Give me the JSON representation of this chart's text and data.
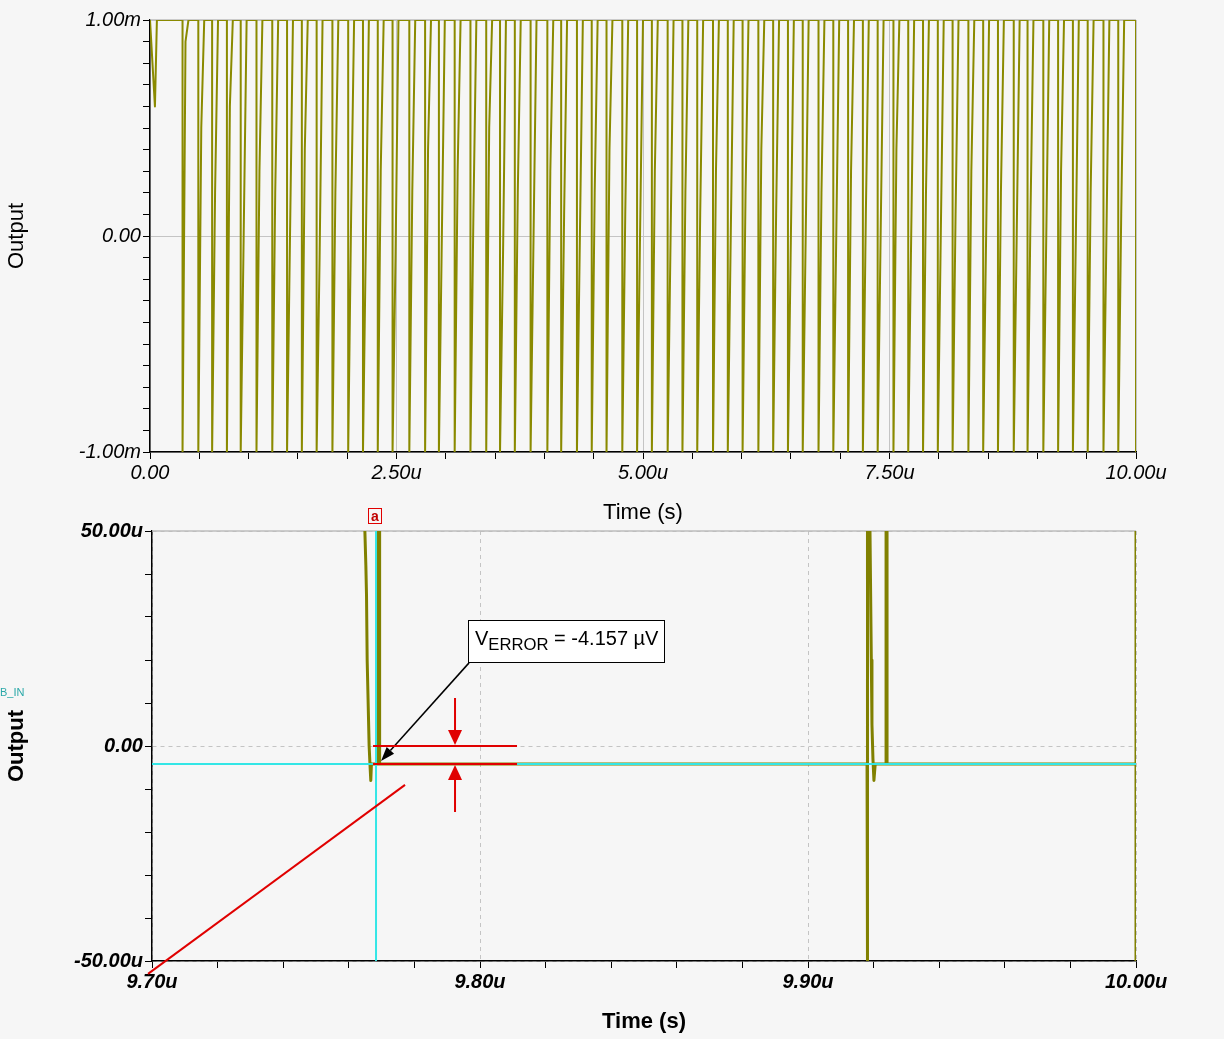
{
  "chart_data": [
    {
      "type": "line",
      "xlabel": "Time (s)",
      "ylabel": "Output",
      "color": "#8a8a00",
      "grid": true,
      "xlim": [
        0,
        10
      ],
      "ylim": [
        -1,
        1
      ],
      "xticks": [
        {
          "value": 0,
          "label": "0.00"
        },
        {
          "value": 0.5,
          "label": null
        },
        {
          "value": 1,
          "label": null
        },
        {
          "value": 1.5,
          "label": null
        },
        {
          "value": 2,
          "label": null
        },
        {
          "value": 2.5,
          "label": "2.50u"
        },
        {
          "value": 3,
          "label": null
        },
        {
          "value": 3.5,
          "label": null
        },
        {
          "value": 4,
          "label": null
        },
        {
          "value": 4.5,
          "label": null
        },
        {
          "value": 5,
          "label": "5.00u"
        },
        {
          "value": 5.5,
          "label": null
        },
        {
          "value": 6,
          "label": null
        },
        {
          "value": 6.5,
          "label": null
        },
        {
          "value": 7,
          "label": null
        },
        {
          "value": 7.5,
          "label": "7.50u"
        },
        {
          "value": 8,
          "label": null
        },
        {
          "value": 8.5,
          "label": null
        },
        {
          "value": 9,
          "label": null
        },
        {
          "value": 9.5,
          "label": null
        },
        {
          "value": 10,
          "label": "10.00u"
        }
      ],
      "yticks": [
        {
          "value": -1,
          "label": "-1.00m"
        },
        {
          "value": -0.9,
          "label": null
        },
        {
          "value": -0.8,
          "label": null
        },
        {
          "value": -0.7,
          "label": null
        },
        {
          "value": -0.6,
          "label": null
        },
        {
          "value": -0.5,
          "label": null
        },
        {
          "value": -0.4,
          "label": null
        },
        {
          "value": -0.3,
          "label": null
        },
        {
          "value": -0.2,
          "label": null
        },
        {
          "value": -0.1,
          "label": null
        },
        {
          "value": 0,
          "label": "0.00"
        },
        {
          "value": 0.1,
          "label": null
        },
        {
          "value": 0.2,
          "label": null
        },
        {
          "value": 0.3,
          "label": null
        },
        {
          "value": 0.4,
          "label": null
        },
        {
          "value": 0.5,
          "label": null
        },
        {
          "value": 0.6,
          "label": null
        },
        {
          "value": 0.7,
          "label": null
        },
        {
          "value": 0.8,
          "label": null
        },
        {
          "value": 0.9,
          "label": null
        },
        {
          "value": 1,
          "label": "1.00m"
        }
      ],
      "x": [
        0,
        0.05,
        0.07,
        0.33,
        0.33,
        0.36,
        0.39,
        0.49,
        0.49,
        0.52,
        0.55,
        0.63,
        0.63,
        0.66,
        0.69,
        0.78,
        0.78,
        0.81,
        0.84,
        0.92,
        0.92,
        0.95,
        0.98,
        1.08,
        1.08,
        1.11,
        1.14,
        1.24,
        1.24,
        1.27,
        1.3,
        1.39,
        1.39,
        1.42,
        1.45,
        1.54,
        1.54,
        1.57,
        1.6,
        1.69,
        1.69,
        1.72,
        1.75,
        1.85,
        1.85,
        1.88,
        1.91,
        2.01,
        2.01,
        2.04,
        2.07,
        2.16,
        2.16,
        2.19,
        2.22,
        2.31,
        2.31,
        2.34,
        2.37,
        2.46,
        2.46,
        2.49,
        2.52,
        2.63,
        2.63,
        2.66,
        2.69,
        2.79,
        2.79,
        2.82,
        2.85,
        2.93,
        2.93,
        2.96,
        2.99,
        3.09,
        3.09,
        3.12,
        3.15,
        3.25,
        3.25,
        3.28,
        3.31,
        3.41,
        3.41,
        3.44,
        3.47,
        3.55,
        3.55,
        3.58,
        3.61,
        3.7,
        3.7,
        3.73,
        3.76,
        3.86,
        3.86,
        3.89,
        3.92,
        4.03,
        4.03,
        4.06,
        4.09,
        4.17,
        4.17,
        4.2,
        4.23,
        4.33,
        4.33,
        4.36,
        4.39,
        4.48,
        4.48,
        4.51,
        4.54,
        4.63,
        4.63,
        4.66,
        4.69,
        4.79,
        4.79,
        4.82,
        4.85,
        4.94,
        4.94,
        4.97,
        5.0,
        5.09,
        5.09,
        5.12,
        5.15,
        5.25,
        5.25,
        5.28,
        5.31,
        5.4,
        5.4,
        5.43,
        5.46,
        5.55,
        5.55,
        5.58,
        5.61,
        5.71,
        5.71,
        5.74,
        5.77,
        5.86,
        5.86,
        5.89,
        5.92,
        6.01,
        6.01,
        6.04,
        6.07,
        6.17,
        6.17,
        6.2,
        6.23,
        6.32,
        6.32,
        6.35,
        6.38,
        6.47,
        6.47,
        6.5,
        6.53,
        6.62,
        6.62,
        6.65,
        6.68,
        6.78,
        6.78,
        6.81,
        6.84,
        6.93,
        6.93,
        6.96,
        6.99,
        7.08,
        7.08,
        7.11,
        7.14,
        7.23,
        7.23,
        7.26,
        7.29,
        7.38,
        7.38,
        7.41,
        7.44,
        7.54,
        7.54,
        7.57,
        7.6,
        7.69,
        7.69,
        7.72,
        7.75,
        7.84,
        7.84,
        7.87,
        7.9,
        7.99,
        7.99,
        8.02,
        8.05,
        8.14,
        8.14,
        8.17,
        8.2,
        8.3,
        8.3,
        8.33,
        8.36,
        8.45,
        8.45,
        8.48,
        8.51,
        8.6,
        8.6,
        8.63,
        8.66,
        8.76,
        8.76,
        8.79,
        8.82,
        8.9,
        8.9,
        8.93,
        8.96,
        9.06,
        9.06,
        9.09,
        9.12,
        9.21,
        9.21,
        9.24,
        9.27,
        9.36,
        9.36,
        9.39,
        9.42,
        9.51,
        9.51,
        9.54,
        9.57,
        9.67,
        9.67,
        9.7,
        9.73,
        9.82,
        9.82,
        9.85,
        9.88,
        10,
        10
      ],
      "values": [
        1,
        0.6,
        1,
        1,
        -1,
        0.9,
        1,
        1,
        -1,
        0.5,
        1,
        1,
        -1,
        0.2,
        1,
        1,
        -1,
        0.6,
        1,
        1,
        -1,
        0,
        1,
        1,
        -1,
        0.3,
        1,
        1,
        -1,
        0.2,
        1,
        1,
        -1,
        0,
        1,
        1,
        -1,
        0.4,
        1,
        1,
        -1,
        -0.1,
        1,
        1,
        -1,
        0.2,
        1,
        1,
        -1,
        0.1,
        1,
        1,
        -1,
        0,
        1,
        1,
        -1,
        0.3,
        1,
        1,
        -1,
        -0.1,
        1,
        1,
        -1,
        0.2,
        1,
        1,
        -1,
        0.4,
        1,
        1,
        -1,
        0,
        1,
        1,
        -1,
        0.3,
        1,
        1,
        -1,
        0.1,
        1,
        1,
        -1,
        0.5,
        1,
        1,
        -1,
        -0.1,
        1,
        1,
        -1,
        0.2,
        1,
        1,
        -1,
        0,
        1,
        1,
        -1,
        0.3,
        1,
        1,
        -1,
        0.1,
        1,
        1,
        -1,
        0,
        1,
        1,
        -1,
        0.2,
        1,
        1,
        -1,
        0.4,
        1,
        1,
        -1,
        0.1,
        1,
        1,
        -1,
        0,
        1,
        1,
        -1,
        0.3,
        1,
        1,
        -1,
        0,
        1,
        1,
        -1,
        0.2,
        1,
        1,
        -1,
        0.1,
        1,
        1,
        -1,
        0.3,
        1,
        1,
        -1,
        0,
        1,
        1,
        -1,
        0.2,
        1,
        1,
        -1,
        0.4,
        1,
        1,
        -1,
        0.1,
        1,
        1,
        -1,
        0,
        1,
        1,
        -1,
        0,
        1,
        1,
        -1,
        0.2,
        1,
        1,
        -1,
        0,
        1,
        1,
        -1,
        0.3,
        1,
        1,
        -1,
        0.1,
        1,
        1,
        -1,
        0,
        1,
        1,
        -1,
        0.4,
        1,
        1,
        -1,
        0,
        1,
        1,
        -1,
        0.2,
        1,
        1,
        -1,
        0,
        1,
        1,
        -1,
        0.1,
        1,
        1,
        -1,
        0.3,
        1,
        1,
        -1,
        0,
        1,
        1,
        -1,
        0.2,
        1,
        1,
        -1,
        0,
        1,
        1,
        -1,
        0.1,
        1,
        1,
        -1,
        0,
        1,
        1,
        -1,
        0.3,
        1,
        1,
        -1,
        0,
        1,
        1,
        -1,
        0.2,
        1,
        1,
        -1,
        0,
        1,
        1,
        -1,
        0.1,
        1,
        1,
        -1
      ]
    },
    {
      "type": "line",
      "xlabel": "Time (s)",
      "ylabel": "Output",
      "color": "#808000",
      "grid": true,
      "xlim": [
        9.7,
        10
      ],
      "ylim": [
        -50,
        50
      ],
      "xticks": [
        {
          "value": 9.7,
          "label": "9.70u"
        },
        {
          "value": 9.72,
          "label": null
        },
        {
          "value": 9.74,
          "label": null
        },
        {
          "value": 9.76,
          "label": null
        },
        {
          "value": 9.78,
          "label": null
        },
        {
          "value": 9.8,
          "label": "9.80u"
        },
        {
          "value": 9.82,
          "label": null
        },
        {
          "value": 9.84,
          "label": null
        },
        {
          "value": 9.86,
          "label": null
        },
        {
          "value": 9.88,
          "label": null
        },
        {
          "value": 9.9,
          "label": "9.90u"
        },
        {
          "value": 9.92,
          "label": null
        },
        {
          "value": 9.94,
          "label": null
        },
        {
          "value": 9.96,
          "label": null
        },
        {
          "value": 9.98,
          "label": null
        },
        {
          "value": 10,
          "label": "10.00u"
        }
      ],
      "yticks": [
        {
          "value": -50,
          "label": "-50.00u"
        },
        {
          "value": -40,
          "label": null
        },
        {
          "value": -30,
          "label": null
        },
        {
          "value": -20,
          "label": null
        },
        {
          "value": -10,
          "label": null
        },
        {
          "value": 0,
          "label": "0.00"
        },
        {
          "value": 10,
          "label": null
        },
        {
          "value": 20,
          "label": null
        },
        {
          "value": 30,
          "label": null
        },
        {
          "value": 40,
          "label": null
        },
        {
          "value": 50,
          "label": "50.00u"
        }
      ],
      "x": [
        9.7649,
        9.7652,
        9.7654,
        9.7656,
        9.7659,
        9.7662,
        9.7665,
        9.7667,
        9.7669,
        9.769,
        9.769,
        9.7694,
        9.7694,
        9.918,
        9.918,
        9.9182,
        9.9182,
        9.9189,
        9.9191,
        9.9193,
        9.9195,
        9.9198,
        9.9201,
        9.9203,
        9.9205,
        9.9238,
        9.9238,
        9.9241,
        9.9241,
        10,
        10,
        10
      ],
      "values": [
        50,
        42,
        35,
        20,
        10,
        0,
        -5,
        -8,
        -4.157,
        -4.157,
        50,
        50,
        -4.157,
        -4.157,
        -50,
        -50,
        50,
        50,
        35,
        20,
        5,
        -3,
        -8,
        -6,
        -4.157,
        -4.157,
        50,
        50,
        -4.157,
        -4.157,
        -50,
        50
      ],
      "ref_lines": [
        {
          "axis": "y",
          "value": -4.157,
          "color": "#33e6e6"
        },
        {
          "axis": "x",
          "value": 9.7683,
          "color": "#33e6e6"
        }
      ],
      "annotations": [
        "B_IN",
        {
          "text": "a",
          "x": 9.7683,
          "y": 50
        },
        "V$_{ERROR}$ = -4.157 µV"
      ]
    }
  ]
}
